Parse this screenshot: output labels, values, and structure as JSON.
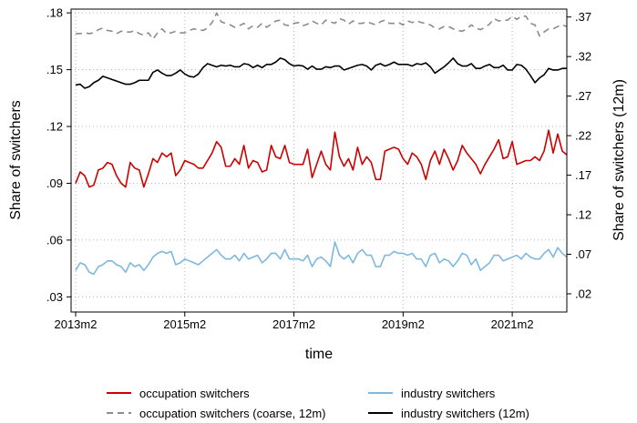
{
  "chart_data": {
    "type": "line",
    "xlabel": "time",
    "ylabel_left": "Share of switchers",
    "ylabel_right": "Share of switchers (12m)",
    "x_ticks": [
      {
        "t": 0,
        "label": "2013m2"
      },
      {
        "t": 24,
        "label": "2015m2"
      },
      {
        "t": 48,
        "label": "2017m2"
      },
      {
        "t": 72,
        "label": "2019m2"
      },
      {
        "t": 96,
        "label": "2021m2"
      }
    ],
    "x_range": [
      -1,
      108
    ],
    "left_axis": {
      "ylim": [
        0.022,
        0.182
      ],
      "ticks": [
        {
          "v": 0.03,
          "label": ".03"
        },
        {
          "v": 0.06,
          "label": ".06"
        },
        {
          "v": 0.09,
          "label": ".09"
        },
        {
          "v": 0.12,
          "label": ".12"
        },
        {
          "v": 0.15,
          "label": ".15"
        },
        {
          "v": 0.18,
          "label": ".18"
        }
      ]
    },
    "right_axis": {
      "ylim": [
        -0.003,
        0.38
      ],
      "ticks": [
        {
          "v": 0.02,
          "label": ".02"
        },
        {
          "v": 0.07,
          "label": ".07"
        },
        {
          "v": 0.12,
          "label": ".12"
        },
        {
          "v": 0.17,
          "label": ".17"
        },
        {
          "v": 0.22,
          "label": ".22"
        },
        {
          "v": 0.27,
          "label": ".27"
        },
        {
          "v": 0.32,
          "label": ".32"
        },
        {
          "v": 0.37,
          "label": ".37"
        }
      ]
    },
    "series": [
      {
        "name": "occupation switchers",
        "axis": "left",
        "color": "#cc0000",
        "dash": "none",
        "t_start": 0,
        "values": [
          0.09,
          0.096,
          0.094,
          0.088,
          0.089,
          0.097,
          0.098,
          0.101,
          0.1,
          0.094,
          0.09,
          0.088,
          0.101,
          0.098,
          0.097,
          0.088,
          0.095,
          0.103,
          0.101,
          0.106,
          0.104,
          0.106,
          0.094,
          0.097,
          0.102,
          0.101,
          0.1,
          0.098,
          0.098,
          0.102,
          0.106,
          0.112,
          0.109,
          0.099,
          0.099,
          0.103,
          0.1,
          0.11,
          0.098,
          0.102,
          0.101,
          0.096,
          0.097,
          0.11,
          0.104,
          0.103,
          0.11,
          0.101,
          0.1,
          0.1,
          0.1,
          0.108,
          0.093,
          0.1,
          0.107,
          0.1,
          0.097,
          0.117,
          0.104,
          0.099,
          0.103,
          0.097,
          0.109,
          0.1,
          0.104,
          0.101,
          0.092,
          0.092,
          0.107,
          0.108,
          0.109,
          0.108,
          0.103,
          0.1,
          0.106,
          0.104,
          0.1,
          0.092,
          0.102,
          0.107,
          0.1,
          0.108,
          0.103,
          0.097,
          0.102,
          0.11,
          0.106,
          0.103,
          0.1,
          0.095,
          0.1,
          0.104,
          0.108,
          0.113,
          0.103,
          0.104,
          0.112,
          0.1,
          0.101,
          0.102,
          0.102,
          0.104,
          0.102,
          0.107,
          0.118,
          0.106,
          0.116,
          0.107,
          0.105
        ]
      },
      {
        "name": "industry switchers",
        "axis": "left",
        "color": "#7db8e0",
        "dash": "none",
        "t_start": 0,
        "values": [
          0.044,
          0.048,
          0.047,
          0.043,
          0.042,
          0.046,
          0.047,
          0.049,
          0.049,
          0.047,
          0.046,
          0.043,
          0.048,
          0.046,
          0.047,
          0.044,
          0.047,
          0.051,
          0.053,
          0.054,
          0.053,
          0.054,
          0.047,
          0.048,
          0.05,
          0.049,
          0.048,
          0.047,
          0.049,
          0.051,
          0.053,
          0.055,
          0.052,
          0.05,
          0.05,
          0.052,
          0.049,
          0.053,
          0.05,
          0.051,
          0.052,
          0.048,
          0.05,
          0.053,
          0.053,
          0.05,
          0.055,
          0.05,
          0.05,
          0.05,
          0.049,
          0.052,
          0.046,
          0.05,
          0.051,
          0.049,
          0.046,
          0.059,
          0.052,
          0.05,
          0.052,
          0.048,
          0.053,
          0.055,
          0.052,
          0.052,
          0.046,
          0.046,
          0.052,
          0.052,
          0.054,
          0.053,
          0.053,
          0.052,
          0.053,
          0.05,
          0.05,
          0.046,
          0.052,
          0.053,
          0.048,
          0.05,
          0.049,
          0.046,
          0.049,
          0.053,
          0.052,
          0.047,
          0.05,
          0.044,
          0.046,
          0.048,
          0.052,
          0.052,
          0.049,
          0.05,
          0.051,
          0.052,
          0.05,
          0.053,
          0.051,
          0.05,
          0.05,
          0.053,
          0.055,
          0.051,
          0.056,
          0.053,
          0.051
        ]
      },
      {
        "name": "occupation switchers (coarse, 12m)",
        "axis": "right",
        "color": "#8c8c8c",
        "dash": "7 5",
        "t_start": 0,
        "values": [
          0.349,
          0.349,
          0.35,
          0.349,
          0.35,
          0.354,
          0.356,
          0.353,
          0.352,
          0.349,
          0.352,
          0.351,
          0.351,
          0.353,
          0.349,
          0.347,
          0.35,
          0.342,
          0.35,
          0.355,
          0.349,
          0.35,
          0.352,
          0.35,
          0.35,
          0.353,
          0.355,
          0.354,
          0.353,
          0.356,
          0.363,
          0.375,
          0.364,
          0.362,
          0.36,
          0.357,
          0.359,
          0.362,
          0.355,
          0.359,
          0.357,
          0.362,
          0.357,
          0.361,
          0.365,
          0.366,
          0.36,
          0.359,
          0.362,
          0.363,
          0.359,
          0.361,
          0.365,
          0.362,
          0.36,
          0.366,
          0.364,
          0.362,
          0.368,
          0.366,
          0.361,
          0.365,
          0.362,
          0.362,
          0.364,
          0.362,
          0.36,
          0.364,
          0.366,
          0.362,
          0.362,
          0.363,
          0.36,
          0.365,
          0.363,
          0.365,
          0.363,
          0.362,
          0.36,
          0.356,
          0.355,
          0.358,
          0.358,
          0.355,
          0.353,
          0.352,
          0.355,
          0.36,
          0.356,
          0.354,
          0.357,
          0.361,
          0.368,
          0.365,
          0.366,
          0.366,
          0.371,
          0.367,
          0.371,
          0.371,
          0.362,
          0.36,
          0.346,
          0.351,
          0.355,
          0.355,
          0.358,
          0.36,
          0.358
        ]
      },
      {
        "name": "industry switchers (12m)",
        "axis": "right",
        "color": "#000000",
        "dash": "none",
        "t_start": 0,
        "values": [
          0.284,
          0.285,
          0.28,
          0.282,
          0.287,
          0.29,
          0.295,
          0.293,
          0.291,
          0.289,
          0.287,
          0.285,
          0.285,
          0.287,
          0.29,
          0.29,
          0.29,
          0.3,
          0.303,
          0.299,
          0.296,
          0.296,
          0.299,
          0.303,
          0.298,
          0.295,
          0.294,
          0.298,
          0.306,
          0.311,
          0.309,
          0.307,
          0.309,
          0.308,
          0.309,
          0.307,
          0.307,
          0.311,
          0.31,
          0.306,
          0.309,
          0.306,
          0.31,
          0.31,
          0.313,
          0.318,
          0.316,
          0.311,
          0.308,
          0.309,
          0.308,
          0.304,
          0.308,
          0.304,
          0.304,
          0.307,
          0.306,
          0.308,
          0.308,
          0.303,
          0.305,
          0.307,
          0.309,
          0.31,
          0.308,
          0.303,
          0.309,
          0.311,
          0.308,
          0.31,
          0.313,
          0.31,
          0.31,
          0.31,
          0.308,
          0.311,
          0.31,
          0.312,
          0.307,
          0.299,
          0.303,
          0.307,
          0.312,
          0.318,
          0.311,
          0.308,
          0.308,
          0.311,
          0.305,
          0.305,
          0.308,
          0.31,
          0.306,
          0.306,
          0.309,
          0.303,
          0.303,
          0.31,
          0.309,
          0.304,
          0.296,
          0.287,
          0.293,
          0.297,
          0.305,
          0.303,
          0.303,
          0.305,
          0.305
        ]
      }
    ],
    "legend": {
      "placement": "bottom",
      "entries": [
        "occupation switchers",
        "industry switchers",
        "occupation switchers (coarse, 12m)",
        "industry switchers (12m)"
      ]
    }
  }
}
